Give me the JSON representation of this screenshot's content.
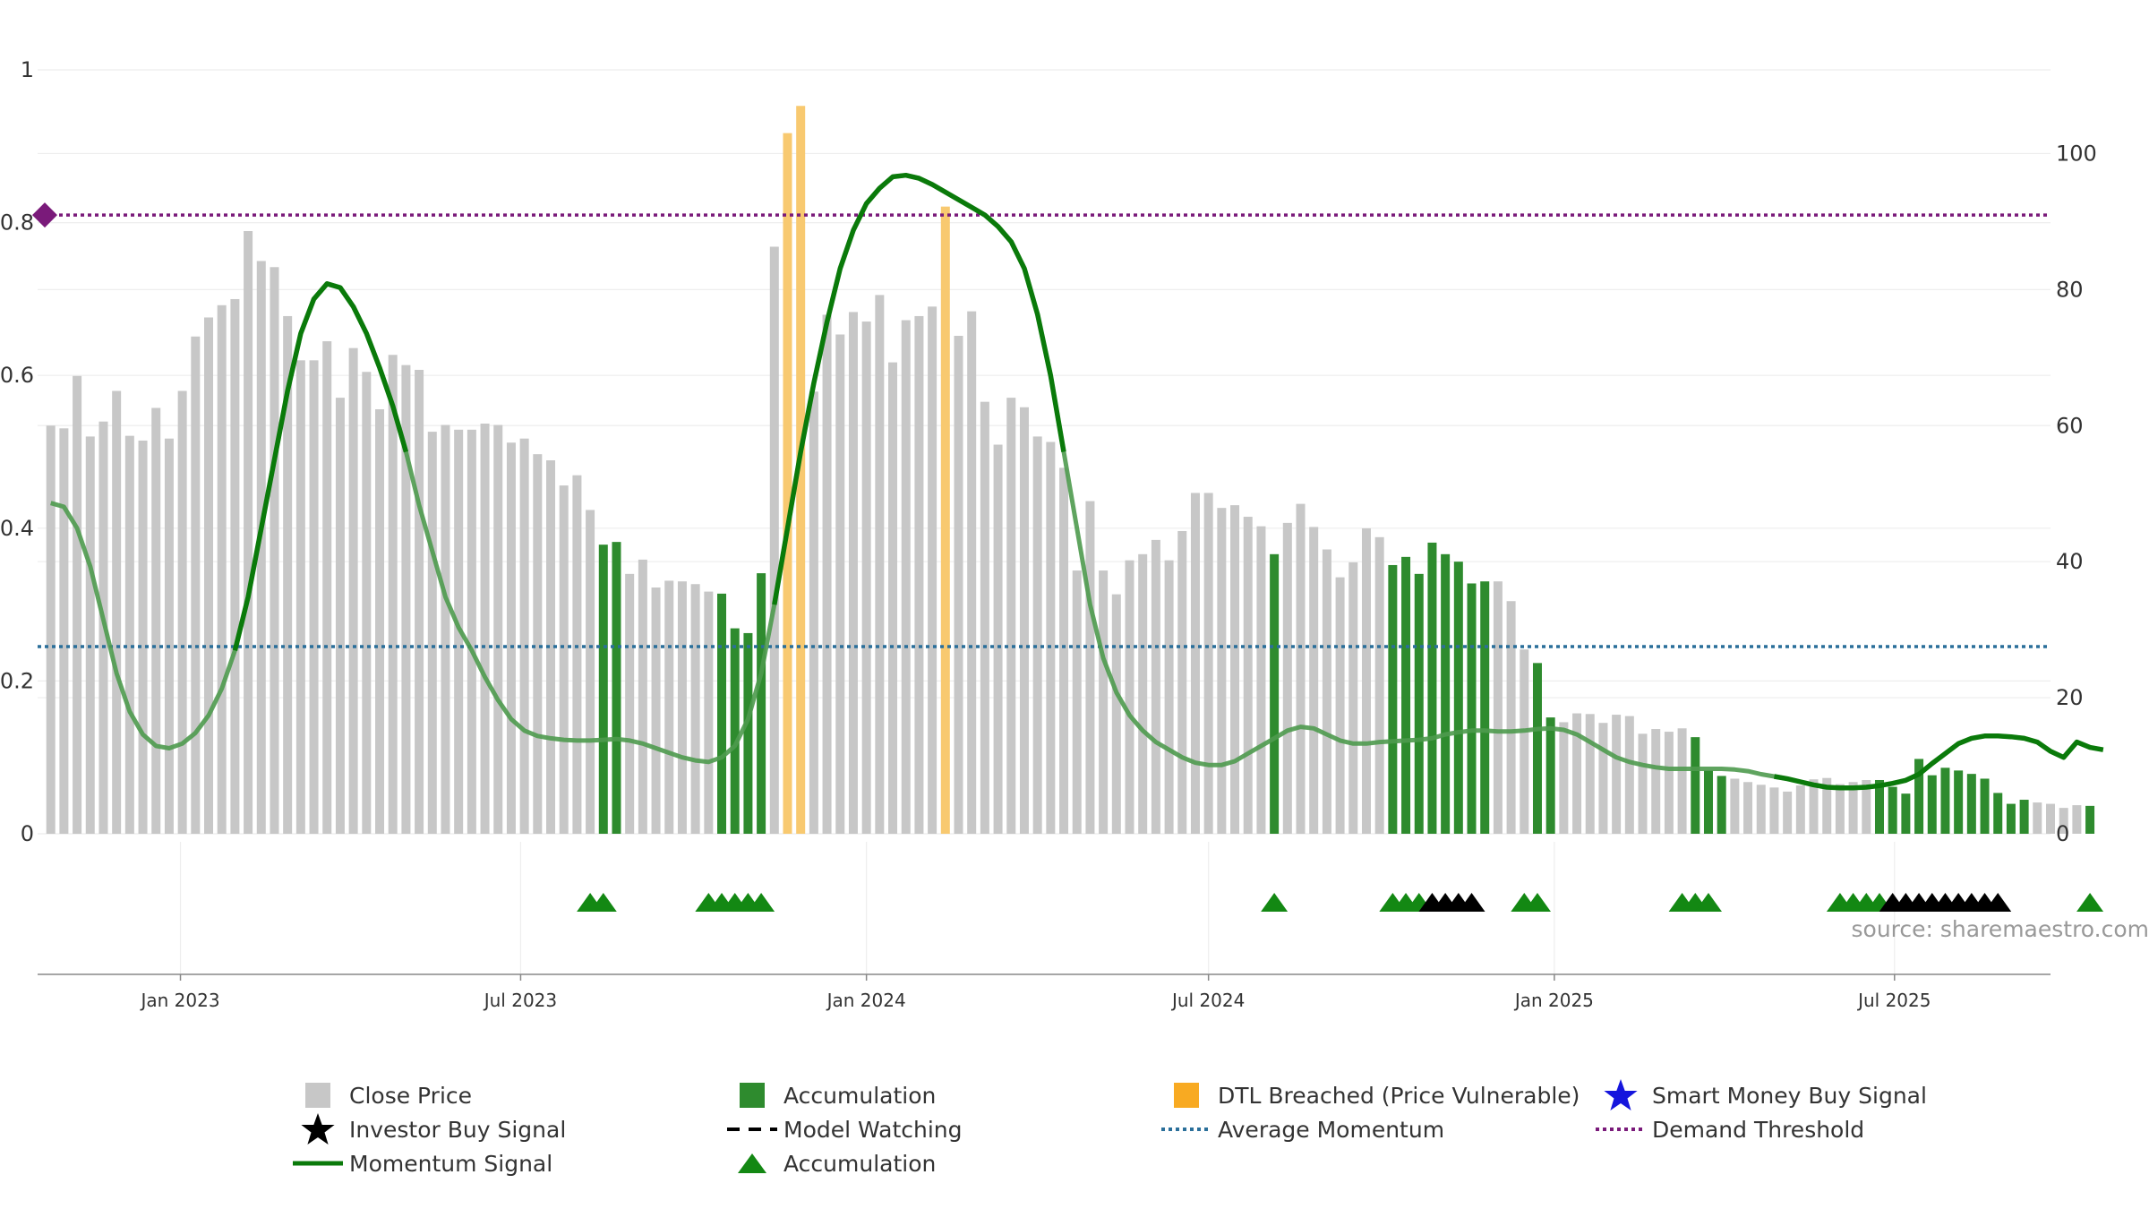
{
  "source_text": "source: sharemaestro.com",
  "colors": {
    "close_price": "#c7c7c7",
    "accumulation": "#2e8b2e",
    "dtl_breached": "#f8c970",
    "momentum": "#0a7a0a",
    "average_momentum": "#2a6f9a",
    "demand_threshold": "#7a1a7a",
    "investor_signal": "#000000",
    "smart_money": "#1515dd",
    "accum_marker": "#138813"
  },
  "legend": [
    {
      "label": "Close Price",
      "symbol": "gray-square"
    },
    {
      "label": "Accumulation",
      "symbol": "green-square"
    },
    {
      "label": "DTL Breached (Price Vulnerable)",
      "symbol": "orange-square"
    },
    {
      "label": "Smart Money Buy Signal",
      "symbol": "blue-star"
    },
    {
      "label": "Investor Buy Signal",
      "symbol": "black-star"
    },
    {
      "label": "Model Watching",
      "symbol": "black-dashed-line"
    },
    {
      "label": "Average Momentum",
      "symbol": "blue-dotted-line"
    },
    {
      "label": "Demand Threshold",
      "symbol": "purple-dotted-line"
    },
    {
      "label": "Momentum Signal",
      "symbol": "green-line"
    },
    {
      "label": "Accumulation",
      "symbol": "green-triangle"
    }
  ],
  "chart_data": {
    "type": "bar",
    "title": "",
    "left_axis": {
      "range": [
        0,
        1
      ],
      "ticks": [
        "0",
        "0.2",
        "0.4",
        "0.6",
        "0.8",
        "1"
      ]
    },
    "right_axis": {
      "range": [
        0,
        112.3
      ],
      "ticks": [
        "0",
        "20",
        "40",
        "60",
        "80",
        "100"
      ]
    },
    "x_axis": {
      "start": "2022-10-17",
      "end": "2025-09-22",
      "ticks": [
        "Jan 2023",
        "Jul 2023",
        "Jan 2024",
        "Jul 2024",
        "Jan 2025",
        "Jul 2025"
      ]
    },
    "grid": true,
    "close_price": {
      "weeks_from": "2022-10-24",
      "interval_days": 7,
      "values": [
        60,
        59.6,
        67.3,
        58.4,
        60.6,
        65.1,
        58.5,
        57.8,
        62.6,
        58.1,
        65.1,
        73.1,
        75.9,
        77.7,
        78.6,
        88.6,
        84.2,
        83.3,
        76.1,
        69.6,
        69.6,
        72.4,
        64.1,
        71.4,
        67.9,
        62.4,
        70.4,
        68.9,
        68.2,
        59.1,
        60.1,
        59.4,
        59.4,
        60.3,
        60.1,
        57.5,
        58.1,
        55.8,
        54.9,
        51.2,
        52.7,
        47.6,
        42.5,
        42.9,
        38.2,
        40.3,
        36.2,
        37.2,
        37.1,
        36.7,
        35.6,
        35.3,
        30.2,
        29.5,
        38.3,
        86.3,
        103,
        107,
        65,
        76.3,
        73.4,
        76.7,
        75.3,
        79.2,
        69.3,
        75.5,
        76.1,
        77.5,
        92.2,
        73.2,
        76.8,
        63.5,
        57.2,
        64.1,
        62.7,
        58.4,
        57.6,
        53.8,
        38.7,
        48.9,
        38.7,
        35.2,
        40.2,
        41.1,
        43.2,
        40.2,
        44.5,
        50.1,
        50.1,
        47.9,
        48.3,
        46.6,
        45.2,
        41.1,
        45.7,
        48.5,
        45.1,
        41.8,
        37.7,
        39.9,
        44.9,
        43.6,
        39.5,
        40.7,
        38.2,
        42.8,
        41.1,
        40,
        36.8,
        37.1,
        37.1,
        34.2,
        27.1,
        25.1,
        17.1,
        16.4,
        17.7,
        17.6,
        16.3,
        17.5,
        17.3,
        14.7,
        15.4,
        15,
        15.5,
        14.2,
        9.3,
        8.5,
        8.1,
        7.6,
        7.2,
        6.8,
        6.2,
        7.1,
        8,
        8.2,
        7.3,
        7.6,
        7.9,
        7.9,
        6.9,
        5.9,
        11,
        8.6,
        9.7,
        9.3,
        8.8,
        8.1,
        6,
        4.4,
        5,
        4.6,
        4.4,
        3.8,
        4.2,
        4.1
      ]
    },
    "accumulation_weeks": [
      42,
      43,
      51,
      52,
      53,
      54,
      93,
      102,
      103,
      104,
      105,
      106,
      107,
      108,
      109,
      113,
      114,
      125,
      126,
      127,
      139,
      140,
      141,
      142,
      143,
      144,
      145,
      146,
      147,
      148,
      149,
      150,
      155
    ],
    "dtl_breached_weeks": [
      56,
      57,
      68
    ],
    "momentum_signal": [
      [
        0,
        0.433
      ],
      [
        1,
        0.428
      ],
      [
        2,
        0.4
      ],
      [
        3,
        0.35
      ],
      [
        4,
        0.28
      ],
      [
        5,
        0.21
      ],
      [
        6,
        0.16
      ],
      [
        7,
        0.13
      ],
      [
        8,
        0.115
      ],
      [
        9,
        0.112
      ],
      [
        10,
        0.118
      ],
      [
        11,
        0.132
      ],
      [
        12,
        0.155
      ],
      [
        13,
        0.19
      ],
      [
        14,
        0.24
      ],
      [
        15,
        0.31
      ],
      [
        16,
        0.4
      ],
      [
        17,
        0.49
      ],
      [
        18,
        0.58
      ],
      [
        19,
        0.655
      ],
      [
        20,
        0.7
      ],
      [
        21,
        0.72
      ],
      [
        22,
        0.715
      ],
      [
        23,
        0.69
      ],
      [
        24,
        0.655
      ],
      [
        25,
        0.61
      ],
      [
        26,
        0.56
      ],
      [
        27,
        0.5
      ],
      [
        28,
        0.43
      ],
      [
        29,
        0.37
      ],
      [
        30,
        0.31
      ],
      [
        31,
        0.27
      ],
      [
        32,
        0.24
      ],
      [
        33,
        0.205
      ],
      [
        34,
        0.175
      ],
      [
        35,
        0.15
      ],
      [
        36,
        0.135
      ],
      [
        37,
        0.128
      ],
      [
        38,
        0.125
      ],
      [
        39,
        0.123
      ],
      [
        40,
        0.122
      ],
      [
        41,
        0.122
      ],
      [
        42,
        0.123
      ],
      [
        43,
        0.124
      ],
      [
        44,
        0.122
      ],
      [
        45,
        0.118
      ],
      [
        46,
        0.112
      ],
      [
        47,
        0.106
      ],
      [
        48,
        0.1
      ],
      [
        49,
        0.096
      ],
      [
        50,
        0.094
      ],
      [
        51,
        0.1
      ],
      [
        52,
        0.115
      ],
      [
        53,
        0.15
      ],
      [
        54,
        0.21
      ],
      [
        55,
        0.3
      ],
      [
        56,
        0.4
      ],
      [
        57,
        0.5
      ],
      [
        58,
        0.59
      ],
      [
        59,
        0.67
      ],
      [
        60,
        0.74
      ],
      [
        61,
        0.79
      ],
      [
        62,
        0.825
      ],
      [
        63,
        0.845
      ],
      [
        64,
        0.86
      ],
      [
        65,
        0.862
      ],
      [
        66,
        0.858
      ],
      [
        67,
        0.85
      ],
      [
        68,
        0.84
      ],
      [
        69,
        0.83
      ],
      [
        70,
        0.82
      ],
      [
        71,
        0.81
      ],
      [
        72,
        0.795
      ],
      [
        73,
        0.775
      ],
      [
        74,
        0.74
      ],
      [
        75,
        0.68
      ],
      [
        76,
        0.6
      ],
      [
        77,
        0.5
      ],
      [
        78,
        0.4
      ],
      [
        79,
        0.3
      ],
      [
        80,
        0.23
      ],
      [
        81,
        0.185
      ],
      [
        82,
        0.155
      ],
      [
        83,
        0.135
      ],
      [
        84,
        0.12
      ],
      [
        85,
        0.11
      ],
      [
        86,
        0.1
      ],
      [
        87,
        0.093
      ],
      [
        88,
        0.09
      ],
      [
        89,
        0.09
      ],
      [
        90,
        0.095
      ],
      [
        91,
        0.105
      ],
      [
        92,
        0.115
      ],
      [
        93,
        0.125
      ],
      [
        94,
        0.135
      ],
      [
        95,
        0.14
      ],
      [
        96,
        0.138
      ],
      [
        97,
        0.13
      ],
      [
        98,
        0.122
      ],
      [
        99,
        0.118
      ],
      [
        100,
        0.118
      ],
      [
        101,
        0.12
      ],
      [
        102,
        0.121
      ],
      [
        103,
        0.122
      ],
      [
        104,
        0.123
      ],
      [
        105,
        0.125
      ],
      [
        106,
        0.13
      ],
      [
        107,
        0.133
      ],
      [
        108,
        0.135
      ],
      [
        109,
        0.135
      ],
      [
        110,
        0.134
      ],
      [
        111,
        0.134
      ],
      [
        112,
        0.135
      ],
      [
        113,
        0.137
      ],
      [
        114,
        0.138
      ],
      [
        115,
        0.136
      ],
      [
        116,
        0.13
      ],
      [
        117,
        0.12
      ],
      [
        118,
        0.11
      ],
      [
        119,
        0.1
      ],
      [
        120,
        0.094
      ],
      [
        121,
        0.09
      ],
      [
        122,
        0.087
      ],
      [
        123,
        0.085
      ],
      [
        124,
        0.085
      ],
      [
        125,
        0.085
      ],
      [
        126,
        0.085
      ],
      [
        127,
        0.085
      ],
      [
        128,
        0.084
      ],
      [
        129,
        0.082
      ],
      [
        130,
        0.078
      ],
      [
        131,
        0.075
      ],
      [
        132,
        0.072
      ],
      [
        133,
        0.068
      ],
      [
        134,
        0.064
      ],
      [
        135,
        0.061
      ],
      [
        136,
        0.06
      ],
      [
        137,
        0.06
      ],
      [
        138,
        0.061
      ],
      [
        139,
        0.063
      ],
      [
        140,
        0.066
      ],
      [
        141,
        0.07
      ],
      [
        142,
        0.078
      ],
      [
        143,
        0.092
      ],
      [
        144,
        0.105
      ],
      [
        145,
        0.118
      ],
      [
        146,
        0.125
      ],
      [
        147,
        0.128
      ],
      [
        148,
        0.128
      ],
      [
        149,
        0.127
      ],
      [
        150,
        0.125
      ],
      [
        151,
        0.12
      ],
      [
        152,
        0.108
      ],
      [
        153,
        0.1
      ],
      [
        154,
        0.12
      ],
      [
        155,
        0.113
      ],
      [
        156,
        0.11
      ]
    ],
    "momentum_bright_ranges": [
      [
        14,
        27
      ],
      [
        55,
        77
      ],
      [
        131,
        156
      ]
    ],
    "average_momentum": 0.245,
    "demand_threshold": 0.81,
    "accumulation_markers": [
      41,
      42,
      50,
      51,
      52,
      53,
      54,
      93,
      102,
      103,
      104,
      112,
      113,
      124,
      125,
      126,
      136,
      137,
      138,
      139,
      155
    ],
    "investor_buy_markers": [
      105,
      106,
      107,
      108,
      140,
      141,
      142,
      143,
      144,
      145,
      146,
      147,
      148
    ]
  }
}
